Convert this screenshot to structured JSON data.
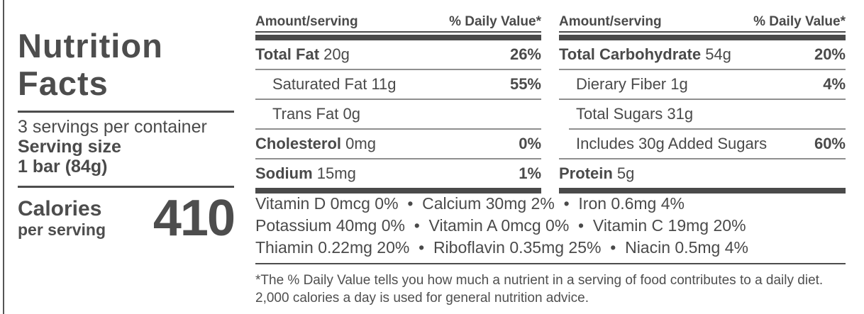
{
  "label": {
    "title_line1": "Nutrition",
    "title_line2": "Facts",
    "servings_per_container": "3 servings per container",
    "serving_size_label": "Serving size",
    "serving_size_value": "1 bar (84g)",
    "calories_label": "Calories",
    "calories_sublabel": "per serving",
    "calories_value": "410"
  },
  "colors": {
    "text": "#4a4a4a",
    "thick_bar": "#4a4a4a",
    "thin_rule": "#8f8f8f"
  },
  "columns": [
    {
      "header": {
        "amount": "Amount/serving",
        "dv": "% Daily Value*"
      },
      "rows": [
        {
          "name": "Total Fat",
          "amount": "20g",
          "dv": "26%"
        },
        {
          "name": "Saturated Fat",
          "amount": "11g",
          "dv": "55%"
        },
        {
          "name": "Trans Fat",
          "amount": "0g",
          "dv": ""
        },
        {
          "name": "Cholesterol",
          "amount": "0mg",
          "dv": "0%"
        },
        {
          "name": "Sodium",
          "amount": "15mg",
          "dv": "1%"
        }
      ]
    },
    {
      "header": {
        "amount": "Amount/serving",
        "dv": "% Daily Value*"
      },
      "rows": [
        {
          "name": "Total Carbohydrate",
          "amount": "54g",
          "dv": "20%"
        },
        {
          "name": "Dierary Fiber",
          "amount": "1g",
          "dv": "4%"
        },
        {
          "name": "Total Sugars",
          "amount": "31g",
          "dv": ""
        },
        {
          "name": "Includes 30g Added Sugars",
          "amount": "",
          "dv": "60%"
        },
        {
          "name": "Protein",
          "amount": "5g",
          "dv": ""
        }
      ]
    }
  ],
  "micronutrients": {
    "line1": "Vitamin D 0mcg 0%  •  Calcium 30mg 2%  •  Iron 0.6mg 4%",
    "line2": "Potassium 40mg 0%  •  Vitamin A 0mcg 0%  •  Vitamin C 19mg 20%",
    "line3": "Thiamin 0.22mg 20%  •  Riboflavin 0.35mg 25%  •  Niacin 0.5mg 4%"
  },
  "footnote": {
    "line1": "*The % Daily Value tells you how much a nutrient in a serving of food contributes to a daily diet.",
    "line2": "2,000 calories a day is used for general nutrition advice."
  }
}
